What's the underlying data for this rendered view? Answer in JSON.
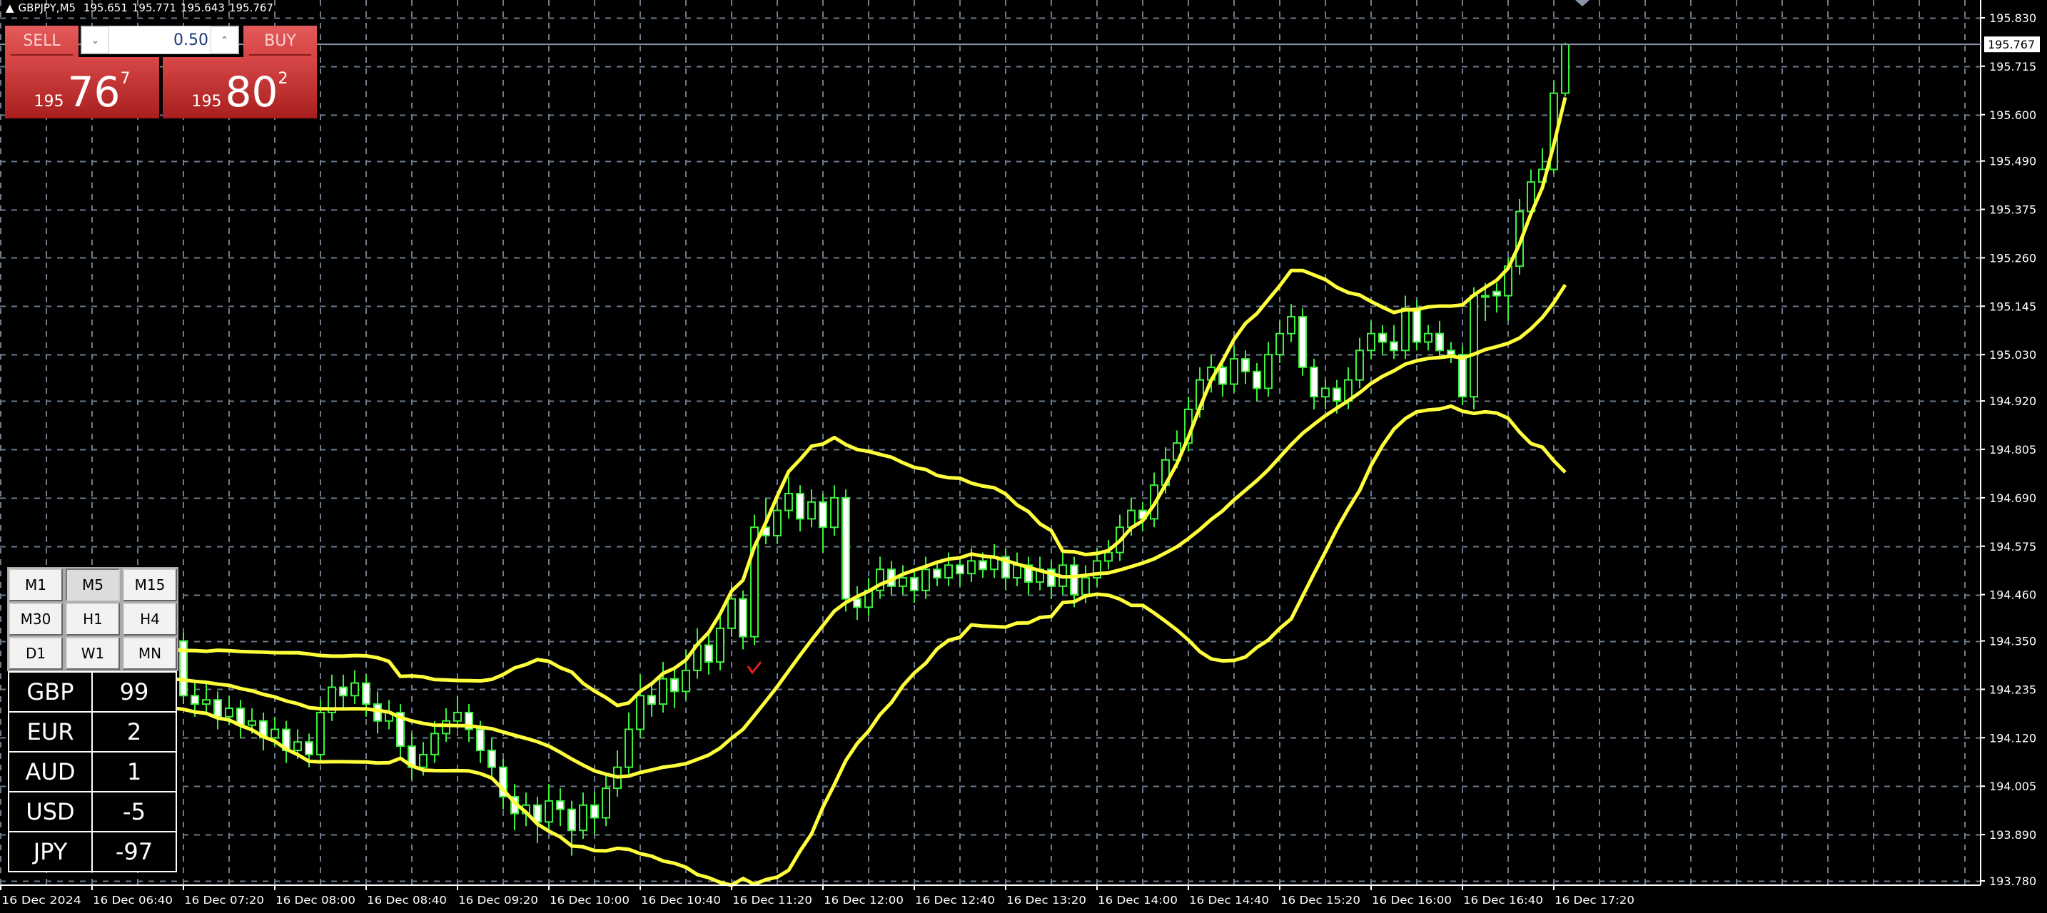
{
  "header": {
    "collapse_icon": "triangle-up-icon",
    "symbol": "GBPJPY,M5",
    "open": "195.651",
    "high": "195.771",
    "low": "195.643",
    "close": "195.767"
  },
  "trade_panel": {
    "sell_label": "SELL",
    "buy_label": "BUY",
    "lot_value": "0.50",
    "lot_down_icon": "chevron-down-icon",
    "lot_up_icon": "chevron-up-icon",
    "sell_price": {
      "prefix": "195",
      "main": "76",
      "pip": "7"
    },
    "buy_price": {
      "prefix": "195",
      "main": "80",
      "pip": "2"
    },
    "color": "#d44444"
  },
  "timeframes": {
    "items": [
      "M1",
      "M5",
      "M15",
      "M30",
      "H1",
      "H4",
      "D1",
      "W1",
      "MN"
    ],
    "active": "M5"
  },
  "currency_strength": [
    {
      "currency": "GBP",
      "value": "99"
    },
    {
      "currency": "EUR",
      "value": "2"
    },
    {
      "currency": "AUD",
      "value": "1"
    },
    {
      "currency": "USD",
      "value": "-5"
    },
    {
      "currency": "JPY",
      "value": "-97"
    }
  ],
  "chart_data": {
    "type": "candlestick",
    "symbol": "GBPJPY",
    "timeframe": "M5",
    "indicator": "Bollinger Bands",
    "current_price": "195.767",
    "ylim": [
      193.78,
      195.83
    ],
    "grid": true,
    "y_ticks": [
      "195.830",
      "195.715",
      "195.600",
      "195.490",
      "195.375",
      "195.260",
      "195.145",
      "195.030",
      "194.920",
      "194.805",
      "194.690",
      "194.575",
      "194.460",
      "194.350",
      "194.235",
      "194.120",
      "194.005",
      "193.890",
      "193.780"
    ],
    "x_ticks": [
      "16 Dec 2024",
      "16 Dec 06:40",
      "16 Dec 07:20",
      "16 Dec 08:00",
      "16 Dec 08:40",
      "16 Dec 09:20",
      "16 Dec 10:00",
      "16 Dec 10:40",
      "16 Dec 11:20",
      "16 Dec 12:00",
      "16 Dec 12:40",
      "16 Dec 13:20",
      "16 Dec 14:00",
      "16 Dec 14:40",
      "16 Dec 15:20",
      "16 Dec 16:00",
      "16 Dec 16:40",
      "16 Dec 17:20"
    ],
    "colors": {
      "candle_outline": "#3cf03c",
      "bear_fill": "#ffffff",
      "bull_fill": "#000000",
      "bands": "#ffff3c",
      "grid": "#6e7b8b",
      "background": "#000000"
    },
    "candles_ohlc": [
      [
        194.28,
        194.33,
        194.26,
        194.3
      ],
      [
        194.3,
        194.32,
        194.25,
        194.27
      ],
      [
        194.27,
        194.31,
        194.25,
        194.29
      ],
      [
        194.29,
        194.31,
        194.24,
        194.26
      ],
      [
        194.26,
        194.3,
        194.24,
        194.28
      ],
      [
        194.28,
        194.3,
        194.22,
        194.24
      ],
      [
        194.24,
        194.29,
        194.22,
        194.27
      ],
      [
        194.27,
        194.29,
        194.21,
        194.23
      ],
      [
        194.23,
        194.27,
        194.21,
        194.25
      ],
      [
        194.25,
        194.27,
        194.2,
        194.22
      ],
      [
        194.22,
        194.26,
        194.2,
        194.24
      ],
      [
        194.24,
        194.26,
        194.19,
        194.21
      ],
      [
        194.21,
        194.25,
        194.19,
        194.23
      ],
      [
        194.23,
        194.28,
        194.21,
        194.26
      ],
      [
        194.26,
        194.37,
        194.25,
        194.35
      ],
      [
        194.35,
        194.37,
        194.2,
        194.22
      ],
      [
        194.22,
        194.25,
        194.17,
        194.2
      ],
      [
        194.2,
        194.25,
        194.18,
        194.21
      ],
      [
        194.21,
        194.23,
        194.14,
        194.17
      ],
      [
        194.17,
        194.22,
        194.15,
        194.19
      ],
      [
        194.19,
        194.21,
        194.12,
        194.15
      ],
      [
        194.15,
        194.19,
        194.13,
        194.16
      ],
      [
        194.16,
        194.18,
        194.09,
        194.12
      ],
      [
        194.12,
        194.17,
        194.1,
        194.14
      ],
      [
        194.14,
        194.16,
        194.06,
        194.09
      ],
      [
        194.09,
        194.14,
        194.07,
        194.11
      ],
      [
        194.11,
        194.13,
        194.05,
        194.08
      ],
      [
        194.08,
        194.21,
        194.06,
        194.18
      ],
      [
        194.18,
        194.27,
        194.16,
        194.24
      ],
      [
        194.24,
        194.27,
        194.19,
        194.22
      ],
      [
        194.22,
        194.28,
        194.2,
        194.25
      ],
      [
        194.25,
        194.27,
        194.17,
        194.2
      ],
      [
        194.2,
        194.23,
        194.13,
        194.16
      ],
      [
        194.16,
        194.21,
        194.14,
        194.18
      ],
      [
        194.18,
        194.2,
        194.07,
        194.1
      ],
      [
        194.1,
        194.13,
        194.02,
        194.05
      ],
      [
        194.05,
        194.11,
        194.03,
        194.08
      ],
      [
        194.08,
        194.16,
        194.06,
        194.13
      ],
      [
        194.13,
        194.19,
        194.11,
        194.16
      ],
      [
        194.16,
        194.22,
        194.14,
        194.18
      ],
      [
        194.18,
        194.2,
        194.11,
        194.14
      ],
      [
        194.14,
        194.16,
        194.06,
        194.09
      ],
      [
        194.09,
        194.12,
        194.02,
        194.05
      ],
      [
        194.05,
        194.07,
        193.95,
        193.98
      ],
      [
        193.98,
        194.01,
        193.9,
        193.94
      ],
      [
        193.94,
        193.99,
        193.91,
        193.96
      ],
      [
        193.96,
        193.98,
        193.87,
        193.92
      ],
      [
        193.92,
        194.01,
        193.9,
        193.97
      ],
      [
        193.97,
        194.0,
        193.91,
        193.95
      ],
      [
        193.95,
        193.97,
        193.84,
        193.9
      ],
      [
        193.9,
        193.99,
        193.88,
        193.96
      ],
      [
        193.96,
        193.99,
        193.89,
        193.93
      ],
      [
        193.93,
        194.03,
        193.91,
        194.0
      ],
      [
        194.0,
        194.09,
        193.98,
        194.05
      ],
      [
        194.05,
        194.18,
        194.03,
        194.14
      ],
      [
        194.14,
        194.27,
        194.12,
        194.22
      ],
      [
        194.22,
        194.25,
        194.17,
        194.2
      ],
      [
        194.2,
        194.3,
        194.18,
        194.26
      ],
      [
        194.26,
        194.29,
        194.19,
        194.23
      ],
      [
        194.23,
        194.33,
        194.21,
        194.28
      ],
      [
        194.28,
        194.38,
        194.26,
        194.34
      ],
      [
        194.34,
        194.37,
        194.27,
        194.3
      ],
      [
        194.3,
        194.42,
        194.28,
        194.38
      ],
      [
        194.38,
        194.48,
        194.36,
        194.45
      ],
      [
        194.45,
        194.47,
        194.33,
        194.36
      ],
      [
        194.36,
        194.65,
        194.34,
        194.62
      ],
      [
        194.62,
        194.69,
        194.58,
        194.6
      ],
      [
        194.6,
        194.7,
        194.58,
        194.66
      ],
      [
        194.66,
        194.74,
        194.64,
        194.7
      ],
      [
        194.7,
        194.72,
        194.61,
        194.64
      ],
      [
        194.64,
        194.71,
        194.62,
        194.68
      ],
      [
        194.68,
        194.7,
        194.56,
        194.62
      ],
      [
        194.62,
        194.72,
        194.6,
        194.69
      ],
      [
        194.69,
        194.71,
        194.42,
        194.45
      ],
      [
        194.45,
        194.48,
        194.4,
        194.43
      ],
      [
        194.43,
        194.5,
        194.41,
        194.47
      ],
      [
        194.47,
        194.55,
        194.45,
        194.52
      ],
      [
        194.52,
        194.54,
        194.46,
        194.48
      ],
      [
        194.48,
        194.53,
        194.46,
        194.5
      ],
      [
        194.5,
        194.52,
        194.44,
        194.47
      ],
      [
        194.47,
        194.55,
        194.45,
        194.52
      ],
      [
        194.52,
        194.54,
        194.48,
        194.5
      ],
      [
        194.5,
        194.56,
        194.48,
        194.53
      ],
      [
        194.53,
        194.55,
        194.48,
        194.51
      ],
      [
        194.51,
        194.57,
        194.49,
        194.54
      ],
      [
        194.54,
        194.56,
        194.5,
        194.52
      ],
      [
        194.52,
        194.58,
        194.5,
        194.55
      ],
      [
        194.55,
        194.57,
        194.47,
        194.5
      ],
      [
        194.5,
        194.56,
        194.48,
        194.53
      ],
      [
        194.53,
        194.55,
        194.46,
        194.49
      ],
      [
        194.49,
        194.55,
        194.47,
        194.52
      ],
      [
        194.52,
        194.54,
        194.45,
        194.48
      ],
      [
        194.48,
        194.56,
        194.46,
        194.53
      ],
      [
        194.53,
        194.55,
        194.43,
        194.46
      ],
      [
        194.46,
        194.53,
        194.44,
        194.5
      ],
      [
        194.5,
        194.57,
        194.48,
        194.54
      ],
      [
        194.54,
        194.59,
        194.52,
        194.56
      ],
      [
        194.56,
        194.65,
        194.54,
        194.62
      ],
      [
        194.62,
        194.69,
        194.6,
        194.66
      ],
      [
        194.66,
        194.68,
        194.61,
        194.64
      ],
      [
        194.64,
        194.75,
        194.62,
        194.72
      ],
      [
        194.72,
        194.81,
        194.7,
        194.78
      ],
      [
        194.78,
        194.85,
        194.76,
        194.82
      ],
      [
        194.82,
        194.93,
        194.8,
        194.9
      ],
      [
        194.9,
        195.0,
        194.88,
        194.97
      ],
      [
        194.97,
        195.03,
        194.94,
        195.0
      ],
      [
        195.0,
        195.02,
        194.93,
        194.96
      ],
      [
        194.96,
        195.05,
        194.94,
        195.02
      ],
      [
        195.02,
        195.04,
        194.96,
        194.99
      ],
      [
        194.99,
        195.01,
        194.92,
        194.95
      ],
      [
        194.95,
        195.06,
        194.93,
        195.03
      ],
      [
        195.03,
        195.11,
        195.01,
        195.08
      ],
      [
        195.08,
        195.15,
        195.06,
        195.12
      ],
      [
        195.12,
        195.14,
        194.98,
        195.0
      ],
      [
        195.0,
        195.02,
        194.9,
        194.93
      ],
      [
        194.93,
        194.97,
        194.9,
        194.95
      ],
      [
        194.95,
        194.97,
        194.89,
        194.92
      ],
      [
        194.92,
        195.0,
        194.9,
        194.97
      ],
      [
        194.97,
        195.07,
        194.95,
        195.04
      ],
      [
        195.04,
        195.11,
        195.02,
        195.08
      ],
      [
        195.08,
        195.1,
        195.03,
        195.06
      ],
      [
        195.06,
        195.1,
        195.02,
        195.04
      ],
      [
        195.04,
        195.17,
        195.02,
        195.14
      ],
      [
        195.14,
        195.16,
        195.04,
        195.06
      ],
      [
        195.06,
        195.1,
        195.04,
        195.08
      ],
      [
        195.08,
        195.11,
        195.02,
        195.04
      ],
      [
        195.04,
        195.06,
        195.01,
        195.03
      ],
      [
        195.03,
        195.05,
        194.91,
        194.93
      ],
      [
        194.93,
        195.19,
        194.9,
        195.17
      ],
      [
        195.17,
        195.2,
        195.11,
        195.17
      ],
      [
        195.18,
        195.2,
        195.13,
        195.17
      ],
      [
        195.17,
        195.26,
        195.11,
        195.24
      ],
      [
        195.24,
        195.4,
        195.22,
        195.37
      ],
      [
        195.37,
        195.47,
        195.36,
        195.44
      ],
      [
        195.44,
        195.52,
        195.42,
        195.47
      ],
      [
        195.47,
        195.68,
        195.46,
        195.651
      ],
      [
        195.651,
        195.771,
        195.643,
        195.767
      ]
    ]
  }
}
